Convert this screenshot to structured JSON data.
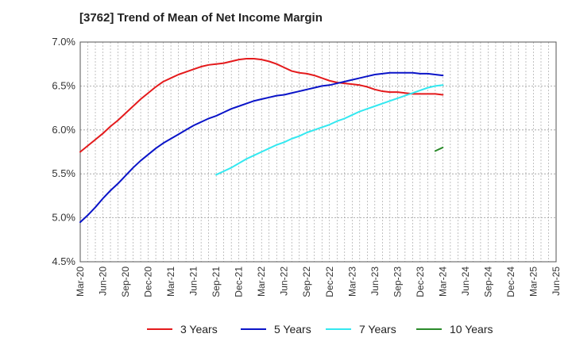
{
  "title": "[3762]  Trend of Mean of Net Income Margin",
  "chart_data": {
    "type": "line",
    "x_ticks": [
      "Mar-20",
      "Jun-20",
      "Sep-20",
      "Dec-20",
      "Mar-21",
      "Jun-21",
      "Sep-21",
      "Dec-21",
      "Mar-22",
      "Jun-22",
      "Sep-22",
      "Dec-22",
      "Mar-23",
      "Jun-23",
      "Sep-23",
      "Dec-23",
      "Mar-24",
      "Jun-24",
      "Sep-24",
      "Dec-24",
      "Mar-25",
      "Jun-25"
    ],
    "y_ticks": [
      "4.5%",
      "5.0%",
      "5.5%",
      "6.0%",
      "6.5%",
      "7.0%"
    ],
    "ylim": [
      4.5,
      7.0
    ],
    "grid": true,
    "legend_position": "bottom",
    "series": [
      {
        "name": "3 Years",
        "color": "#e41a1c",
        "start_index": 0,
        "values": [
          5.75,
          5.82,
          5.89,
          5.96,
          6.04,
          6.11,
          6.19,
          6.27,
          6.35,
          6.42,
          6.49,
          6.55,
          6.59,
          6.63,
          6.66,
          6.69,
          6.72,
          6.74,
          6.75,
          6.76,
          6.78,
          6.8,
          6.81,
          6.81,
          6.8,
          6.78,
          6.75,
          6.71,
          6.67,
          6.65,
          6.64,
          6.62,
          6.59,
          6.56,
          6.54,
          6.53,
          6.52,
          6.51,
          6.49,
          6.46,
          6.44,
          6.43,
          6.43,
          6.42,
          6.41,
          6.41,
          6.41,
          6.41,
          6.4
        ]
      },
      {
        "name": "5 Years",
        "color": "#0a14c8",
        "start_index": 0,
        "values": [
          4.95,
          5.03,
          5.12,
          5.22,
          5.31,
          5.39,
          5.48,
          5.57,
          5.65,
          5.72,
          5.79,
          5.85,
          5.9,
          5.95,
          6.0,
          6.05,
          6.09,
          6.13,
          6.16,
          6.2,
          6.24,
          6.27,
          6.3,
          6.33,
          6.35,
          6.37,
          6.39,
          6.4,
          6.42,
          6.44,
          6.46,
          6.48,
          6.5,
          6.51,
          6.53,
          6.55,
          6.57,
          6.59,
          6.61,
          6.63,
          6.64,
          6.65,
          6.65,
          6.65,
          6.65,
          6.64,
          6.64,
          6.63,
          6.62
        ]
      },
      {
        "name": "7 Years",
        "color": "#33e8f0",
        "start_index": 18,
        "values": [
          5.49,
          5.53,
          5.57,
          5.62,
          5.67,
          5.71,
          5.75,
          5.79,
          5.83,
          5.86,
          5.9,
          5.93,
          5.97,
          6.0,
          6.03,
          6.06,
          6.1,
          6.13,
          6.17,
          6.21,
          6.24,
          6.27,
          6.3,
          6.33,
          6.36,
          6.39,
          6.42,
          6.45,
          6.48,
          6.5,
          6.51
        ]
      },
      {
        "name": "10 Years",
        "color": "#2a8a2a",
        "start_index": 47,
        "values": [
          5.76,
          5.8
        ]
      }
    ]
  }
}
